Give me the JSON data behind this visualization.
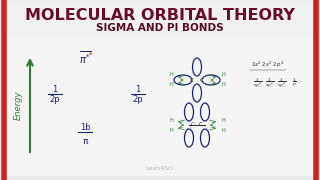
{
  "bg_color": "#e8e8e8",
  "left_border_color": "#cc2222",
  "right_border_color": "#cc2222",
  "title1": "MOLECULAR ORBITAL THEORY",
  "title2": "SIGMA AND PI BONDS",
  "title1_color": "#6b0a2a",
  "title2_color": "#5a0a25",
  "title1_fontsize": 11.5,
  "title2_fontsize": 7.5,
  "energy_label": "Energy",
  "energy_color": "#2e7d32",
  "notation_color": "#1a237e",
  "pi_star_color": "#cc0000",
  "watermark": "Leah4Sci",
  "watermark_color": "#aaaaaa",
  "watermark_fontsize": 4.5,
  "orbital_color": "#1a237e",
  "H_color": "#2e7d32",
  "C_color": "#333333",
  "ec_color": "#333333"
}
